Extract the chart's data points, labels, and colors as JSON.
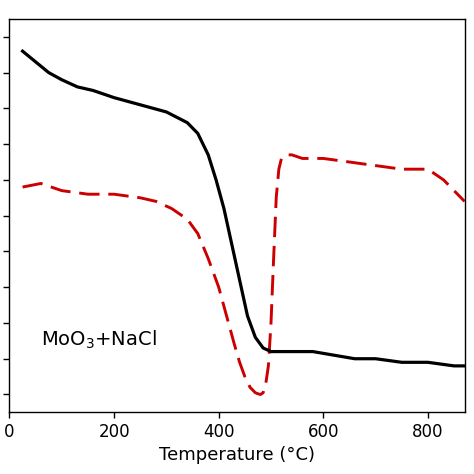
{
  "title": "",
  "xlabel": "Temperature (°C)",
  "ylabel": "",
  "annotation": "MoO$_3$+NaCl",
  "xlim": [
    25,
    870
  ],
  "ylim": [
    -5,
    105
  ],
  "background_color": "#ffffff",
  "tg_color": "#000000",
  "dsc_color": "#cc0000",
  "tg_linewidth": 2.3,
  "dsc_linewidth": 2.1,
  "tg_x": [
    25,
    50,
    75,
    100,
    130,
    160,
    200,
    250,
    300,
    340,
    360,
    380,
    395,
    410,
    425,
    440,
    455,
    470,
    485,
    500,
    510,
    520,
    540,
    580,
    620,
    660,
    700,
    750,
    800,
    850,
    870
  ],
  "tg_y": [
    96,
    93,
    90,
    88,
    86,
    85,
    83,
    81,
    79,
    76,
    73,
    67,
    60,
    52,
    42,
    32,
    22,
    16,
    13,
    12,
    12,
    12,
    12,
    12,
    11,
    10,
    10,
    9,
    9,
    8,
    8
  ],
  "dsc_x": [
    25,
    60,
    100,
    150,
    200,
    250,
    280,
    310,
    340,
    360,
    380,
    400,
    415,
    430,
    440,
    450,
    460,
    470,
    475,
    480,
    485,
    490,
    495,
    500,
    505,
    510,
    515,
    520,
    530,
    540,
    560,
    600,
    650,
    700,
    750,
    800,
    830,
    850,
    870
  ],
  "dsc_y": [
    58,
    59,
    57,
    56,
    56,
    55,
    54,
    52,
    49,
    45,
    38,
    30,
    22,
    14,
    9,
    5,
    2,
    0.5,
    0.2,
    0,
    0.5,
    3,
    8,
    20,
    38,
    55,
    63,
    66,
    67,
    67,
    66,
    66,
    65,
    64,
    63,
    63,
    60,
    57,
    54
  ],
  "xticks": [
    0,
    200,
    400,
    600,
    800
  ],
  "xtick_labels": [
    "0",
    "200",
    "400",
    "600",
    "800"
  ],
  "yticks": [
    0,
    10,
    20,
    30,
    40,
    50,
    60,
    70,
    80,
    90,
    100
  ],
  "xlabel_fontsize": 13,
  "annotation_fontsize": 14,
  "tick_fontsize": 12
}
